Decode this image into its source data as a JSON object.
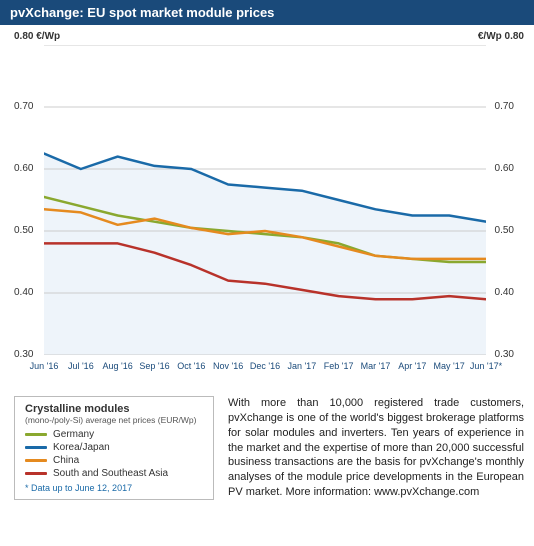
{
  "title": "pvXchange: EU spot market module prices",
  "y_unit_left": "0.80 €/Wp",
  "y_unit_right": "€/Wp 0.80",
  "chart": {
    "type": "line",
    "ylim": [
      0.3,
      0.8
    ],
    "ytick_step": 0.1,
    "yticks": [
      "0.30",
      "0.40",
      "0.50",
      "0.60",
      "0.70",
      "0.80"
    ],
    "xlabels": [
      "Jun '16",
      "Jul '16",
      "Aug '16",
      "Sep '16",
      "Oct '16",
      "Nov '16",
      "Dec '16",
      "Jan '17",
      "Feb '17",
      "Mar '17",
      "Apr '17",
      "May '17",
      "Jun '17*"
    ],
    "grid_color": "#cccccc",
    "background_color": "#ffffff",
    "fill_color": "#eef4fa",
    "line_width": 2.5,
    "series": [
      {
        "name": "Germany",
        "color": "#8aa82f",
        "values": [
          0.555,
          0.54,
          0.525,
          0.515,
          0.505,
          0.5,
          0.495,
          0.49,
          0.48,
          0.46,
          0.455,
          0.45,
          0.45
        ]
      },
      {
        "name": "Korea/Japan",
        "color": "#1a6aa8",
        "values": [
          0.625,
          0.6,
          0.62,
          0.605,
          0.6,
          0.575,
          0.57,
          0.565,
          0.55,
          0.535,
          0.525,
          0.525,
          0.515
        ]
      },
      {
        "name": "China",
        "color": "#e58a1f",
        "values": [
          0.535,
          0.53,
          0.51,
          0.52,
          0.505,
          0.495,
          0.5,
          0.49,
          0.475,
          0.46,
          0.455,
          0.455,
          0.455
        ]
      },
      {
        "name": "South and Southeast Asia",
        "color": "#b8322a",
        "values": [
          0.48,
          0.48,
          0.48,
          0.465,
          0.445,
          0.42,
          0.415,
          0.405,
          0.395,
          0.39,
          0.39,
          0.395,
          0.39
        ]
      }
    ]
  },
  "legend": {
    "title": "Crystalline modules",
    "subtitle": "(mono-/poly-Si) average net prices (EUR/Wp)",
    "note": "* Data up to June 12, 2017"
  },
  "description": "With more than 10,000 registered trade customers, pvXchange is one of the world's biggest brokerage platforms for solar modules and inverters. Ten years of experience in the market and the expertise of more than 20,000 successful business transactions are the basis for pvXchange's monthly analyses of the module price developments in the European PV market. More information: www.pvXchange.com"
}
